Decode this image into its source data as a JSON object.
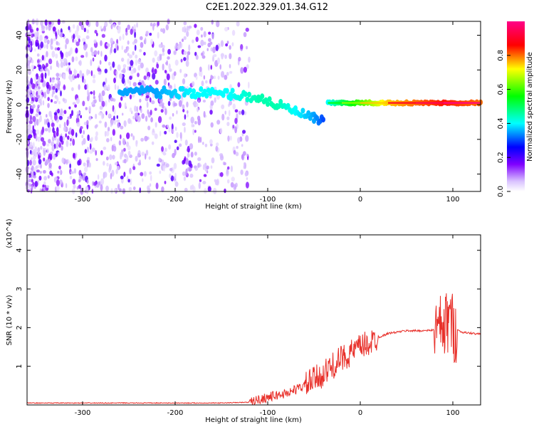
{
  "title": "C2E1.2022.329.01.34.G12",
  "chart_data": [
    {
      "type": "heatmap",
      "xlabel": "Height of straight line (km)",
      "ylabel": "Frequency (Hz)",
      "xlim": [
        -360,
        130
      ],
      "ylim": [
        -50,
        48
      ],
      "xticks": [
        -300,
        -200,
        -100,
        0,
        100
      ],
      "yticks": [
        -40,
        -20,
        0,
        20,
        40
      ],
      "colorbar": {
        "label": "Normalized spectral amplitude",
        "ticks": [
          0.0,
          0.2,
          0.4,
          0.6,
          0.8
        ],
        "range": [
          0,
          1
        ],
        "colormap": [
          "#ffffff",
          "#d9c2ff",
          "#7f00ff",
          "#0000ff",
          "#00ffff",
          "#00ff00",
          "#ffff00",
          "#ff0000",
          "#ff00aa"
        ]
      },
      "main_trace": [
        {
          "x": -260,
          "y": 8,
          "a": 0.35
        },
        {
          "x": -220,
          "y": 7,
          "a": 0.35
        },
        {
          "x": -180,
          "y": 7,
          "a": 0.4
        },
        {
          "x": -140,
          "y": 6,
          "a": 0.4
        },
        {
          "x": -110,
          "y": 4,
          "a": 0.45
        },
        {
          "x": -90,
          "y": 0,
          "a": 0.45
        },
        {
          "x": -70,
          "y": -4,
          "a": 0.4
        },
        {
          "x": -50,
          "y": -8,
          "a": 0.35
        },
        {
          "x": -40,
          "y": -10,
          "a": 0.3
        }
      ],
      "carrier_trace": [
        {
          "x": -35,
          "y": 1,
          "a": 0.4
        },
        {
          "x": -20,
          "y": 1,
          "a": 0.5
        },
        {
          "x": 0,
          "y": 1,
          "a": 0.6
        },
        {
          "x": 30,
          "y": 1,
          "a": 0.75
        },
        {
          "x": 60,
          "y": 1,
          "a": 0.8
        },
        {
          "x": 90,
          "y": 1,
          "a": 0.85
        },
        {
          "x": 130,
          "y": 1,
          "a": 0.8
        }
      ]
    },
    {
      "type": "line",
      "xlabel": "Height of straight line (km)",
      "ylabel": "SNR (10 * v/v)",
      "y_multiplier": "(x10^4)",
      "xlim": [
        -360,
        130
      ],
      "ylim": [
        0,
        4.4
      ],
      "xticks": [
        -300,
        -200,
        -100,
        0,
        100
      ],
      "yticks": [
        1,
        2,
        3,
        4
      ],
      "series": [
        {
          "color": "#e8302a",
          "x": [
            -360,
            -300,
            -200,
            -150,
            -120,
            -100,
            -80,
            -60,
            -40,
            -20,
            0,
            10,
            20,
            30,
            50,
            70,
            85,
            92,
            96,
            100,
            110,
            130
          ],
          "y": [
            0.05,
            0.05,
            0.05,
            0.05,
            0.07,
            0.2,
            0.3,
            0.5,
            0.8,
            1.2,
            1.5,
            1.6,
            1.75,
            1.85,
            1.92,
            1.92,
            1.95,
            2.0,
            2.3,
            2.0,
            1.88,
            1.83
          ]
        }
      ]
    }
  ]
}
